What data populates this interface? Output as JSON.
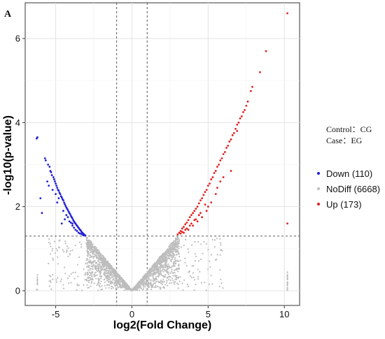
{
  "panel_label": "A",
  "legend": {
    "control_text": "Control：CG",
    "case_text": "Case：EG",
    "items": [
      {
        "label": "Down (110)",
        "color": "#1f1fd6"
      },
      {
        "label": "NoDiff (6668)",
        "color": "#bdbdbd"
      },
      {
        "label": "Up (173)",
        "color": "#e11f1f"
      }
    ]
  },
  "chart_data": {
    "type": "scatter",
    "xlabel": "log2(Fold Change)",
    "ylabel": "-log10(p-value)",
    "xlim": [
      -7,
      11
    ],
    "ylim": [
      -0.35,
      6.85
    ],
    "xticks": [
      {
        "value": -5,
        "label": "-5"
      },
      {
        "value": 0,
        "label": "0"
      },
      {
        "value": 5,
        "label": "5"
      },
      {
        "value": 10,
        "label": "10"
      }
    ],
    "yticks": [
      {
        "value": 0,
        "label": "0"
      },
      {
        "value": 2,
        "label": "2"
      },
      {
        "value": 4,
        "label": "4"
      },
      {
        "value": 6,
        "label": "6"
      }
    ],
    "threshold_lines": {
      "fold_change": [
        -1,
        1
      ],
      "p_value": 1.3
    },
    "grid": true,
    "legend_position": "right",
    "series": [
      {
        "name": "Down (110)",
        "color": "#1f1fd6",
        "points": [
          [
            -6.2,
            3.65
          ],
          [
            -6.25,
            3.62
          ],
          [
            -6.0,
            2.2
          ],
          [
            -5.9,
            1.85
          ],
          [
            -5.7,
            3.15
          ],
          [
            -5.65,
            3.1
          ],
          [
            -5.55,
            2.6
          ],
          [
            -5.5,
            3.0
          ],
          [
            -5.45,
            2.5
          ],
          [
            -5.4,
            2.95
          ],
          [
            -5.35,
            2.85
          ],
          [
            -5.3,
            2.82
          ],
          [
            -5.25,
            2.75
          ],
          [
            -5.2,
            2.4
          ],
          [
            -5.15,
            2.7
          ],
          [
            -5.1,
            2.65
          ],
          [
            -5.05,
            2.6
          ],
          [
            -5.0,
            2.55
          ],
          [
            -4.95,
            2.5
          ],
          [
            -4.9,
            2.45
          ],
          [
            -4.85,
            2.4
          ],
          [
            -4.8,
            2.38
          ],
          [
            -4.75,
            2.33
          ],
          [
            -4.7,
            2.3
          ],
          [
            -4.65,
            2.25
          ],
          [
            -4.6,
            2.22
          ],
          [
            -4.55,
            2.18
          ],
          [
            -4.5,
            2.15
          ],
          [
            -4.45,
            2.1
          ],
          [
            -4.4,
            2.06
          ],
          [
            -4.35,
            2.02
          ],
          [
            -4.3,
            1.98
          ],
          [
            -4.25,
            1.95
          ],
          [
            -4.2,
            1.92
          ],
          [
            -4.15,
            1.88
          ],
          [
            -4.1,
            1.85
          ],
          [
            -4.05,
            1.82
          ],
          [
            -4.0,
            1.78
          ],
          [
            -3.95,
            1.75
          ],
          [
            -3.9,
            1.72
          ],
          [
            -3.85,
            1.68
          ],
          [
            -3.8,
            1.65
          ],
          [
            -3.75,
            1.62
          ],
          [
            -3.7,
            1.6
          ],
          [
            -3.65,
            1.57
          ],
          [
            -3.6,
            1.55
          ],
          [
            -3.55,
            1.52
          ],
          [
            -3.5,
            1.5
          ],
          [
            -3.45,
            1.47
          ],
          [
            -3.4,
            1.45
          ],
          [
            -3.35,
            1.43
          ],
          [
            -3.3,
            1.4
          ],
          [
            -3.25,
            1.38
          ],
          [
            -3.2,
            1.36
          ],
          [
            -3.15,
            1.34
          ],
          [
            -3.1,
            1.33
          ],
          [
            -3.05,
            1.31
          ],
          [
            -4.6,
            1.6
          ],
          [
            -4.4,
            1.7
          ],
          [
            -4.2,
            1.75
          ],
          [
            -3.9,
            1.55
          ],
          [
            -3.7,
            1.45
          ],
          [
            -3.5,
            1.38
          ],
          [
            -4.1,
            1.65
          ],
          [
            -4.3,
            1.8
          ],
          [
            -3.6,
            1.42
          ],
          [
            -3.3,
            1.35
          ],
          [
            -4.8,
            2.2
          ],
          [
            -5.0,
            2.3
          ],
          [
            -4.9,
            2.1
          ],
          [
            -3.8,
            1.5
          ],
          [
            -3.4,
            1.36
          ],
          [
            -3.2,
            1.32
          ],
          [
            -4.5,
            1.9
          ],
          [
            -4.0,
            1.62
          ],
          [
            -3.9,
            1.6
          ]
        ]
      },
      {
        "name": "NoDiff (6668)",
        "color": "#bdbdbd",
        "generated": true
      },
      {
        "name": "Up (173)",
        "color": "#e11f1f",
        "points": [
          [
            10.2,
            6.6
          ],
          [
            10.2,
            1.6
          ],
          [
            8.8,
            5.7
          ],
          [
            8.4,
            5.2
          ],
          [
            7.9,
            4.85
          ],
          [
            7.8,
            4.75
          ],
          [
            7.6,
            4.5
          ],
          [
            7.4,
            4.3
          ],
          [
            7.3,
            4.25
          ],
          [
            7.1,
            4.1
          ],
          [
            7.0,
            4.0
          ],
          [
            6.9,
            3.95
          ],
          [
            6.8,
            3.85
          ],
          [
            6.7,
            3.75
          ],
          [
            6.6,
            3.7
          ],
          [
            6.5,
            3.6
          ],
          [
            6.4,
            3.55
          ],
          [
            6.3,
            3.45
          ],
          [
            6.2,
            3.4
          ],
          [
            6.1,
            3.3
          ],
          [
            6.0,
            3.25
          ],
          [
            5.9,
            3.15
          ],
          [
            5.8,
            3.1
          ],
          [
            5.7,
            3.0
          ],
          [
            5.6,
            2.95
          ],
          [
            5.5,
            2.85
          ],
          [
            5.4,
            2.8
          ],
          [
            5.3,
            2.7
          ],
          [
            5.2,
            2.65
          ],
          [
            5.1,
            2.55
          ],
          [
            5.0,
            2.5
          ],
          [
            4.9,
            2.4
          ],
          [
            4.8,
            2.35
          ],
          [
            4.7,
            2.28
          ],
          [
            4.6,
            2.2
          ],
          [
            4.5,
            2.15
          ],
          [
            4.4,
            2.08
          ],
          [
            4.3,
            2.0
          ],
          [
            4.2,
            1.95
          ],
          [
            4.1,
            1.9
          ],
          [
            4.0,
            1.85
          ],
          [
            3.9,
            1.8
          ],
          [
            3.8,
            1.75
          ],
          [
            3.7,
            1.68
          ],
          [
            3.6,
            1.62
          ],
          [
            3.5,
            1.58
          ],
          [
            3.4,
            1.52
          ],
          [
            3.3,
            1.48
          ],
          [
            3.2,
            1.42
          ],
          [
            3.1,
            1.38
          ],
          [
            3.0,
            1.34
          ],
          [
            6.5,
            2.85
          ],
          [
            5.8,
            2.6
          ],
          [
            5.5,
            2.3
          ],
          [
            5.2,
            2.1
          ],
          [
            4.9,
            1.9
          ],
          [
            4.6,
            1.75
          ],
          [
            4.3,
            1.65
          ],
          [
            4.0,
            1.55
          ],
          [
            3.7,
            1.45
          ],
          [
            3.4,
            1.38
          ],
          [
            5.0,
            2.0
          ],
          [
            4.5,
            1.85
          ],
          [
            4.2,
            1.7
          ],
          [
            3.9,
            1.6
          ],
          [
            3.6,
            1.48
          ],
          [
            3.3,
            1.4
          ],
          [
            6.0,
            2.7
          ],
          [
            5.6,
            2.45
          ],
          [
            4.8,
            2.05
          ],
          [
            4.4,
            1.8
          ],
          [
            4.1,
            1.68
          ],
          [
            3.8,
            1.55
          ],
          [
            3.5,
            1.45
          ],
          [
            3.2,
            1.36
          ],
          [
            7.5,
            4.4
          ],
          [
            7.2,
            4.15
          ],
          [
            6.9,
            3.8
          ]
        ]
      }
    ]
  }
}
